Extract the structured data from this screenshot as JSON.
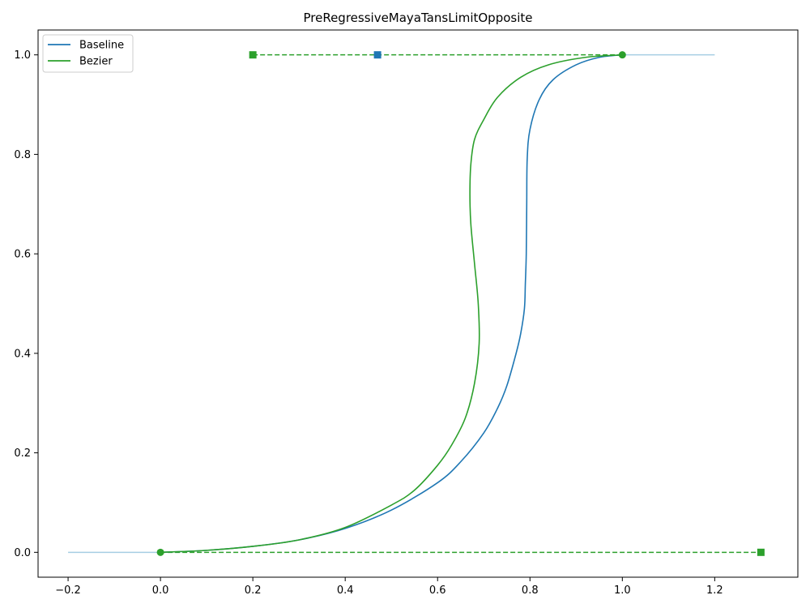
{
  "chart_data": {
    "type": "line",
    "title": "PreRegressiveMayaTansLimitOpposite",
    "xlabel": "",
    "ylabel": "",
    "xlim": [
      -0.265,
      1.38
    ],
    "ylim": [
      -0.05,
      1.05
    ],
    "xticks": [
      -0.2,
      0.0,
      0.2,
      0.4,
      0.6,
      0.8,
      1.0,
      1.2
    ],
    "xtick_labels": [
      "−0.2",
      "0.0",
      "0.2",
      "0.4",
      "0.6",
      "0.8",
      "1.0",
      "1.2"
    ],
    "yticks": [
      0.0,
      0.2,
      0.4,
      0.6,
      0.8,
      1.0
    ],
    "ytick_labels": [
      "0.0",
      "0.2",
      "0.4",
      "0.6",
      "0.8",
      "1.0"
    ],
    "grid": false,
    "legend_position": "upper-left",
    "colors": {
      "baseline": "#1f77b4",
      "bezier": "#2ca02c",
      "extension": "#a6cee3"
    },
    "series": [
      {
        "name": "Baseline",
        "points": [
          [
            0.0,
            0.0
          ],
          [
            0.1,
            0.004
          ],
          [
            0.2,
            0.012
          ],
          [
            0.3,
            0.025
          ],
          [
            0.4,
            0.048
          ],
          [
            0.5,
            0.085
          ],
          [
            0.6,
            0.14
          ],
          [
            0.65,
            0.182
          ],
          [
            0.7,
            0.24
          ],
          [
            0.73,
            0.29
          ],
          [
            0.75,
            0.335
          ],
          [
            0.77,
            0.4
          ],
          [
            0.78,
            0.44
          ],
          [
            0.788,
            0.49
          ],
          [
            0.79,
            0.54
          ],
          [
            0.792,
            0.6
          ],
          [
            0.793,
            0.7
          ],
          [
            0.794,
            0.79
          ],
          [
            0.8,
            0.85
          ],
          [
            0.82,
            0.91
          ],
          [
            0.85,
            0.95
          ],
          [
            0.9,
            0.98
          ],
          [
            0.95,
            0.995
          ],
          [
            1.0,
            1.0
          ]
        ]
      },
      {
        "name": "Bezier",
        "points": [
          [
            0.0,
            0.0
          ],
          [
            0.1,
            0.004
          ],
          [
            0.2,
            0.012
          ],
          [
            0.3,
            0.025
          ],
          [
            0.4,
            0.05
          ],
          [
            0.5,
            0.095
          ],
          [
            0.55,
            0.125
          ],
          [
            0.6,
            0.175
          ],
          [
            0.63,
            0.215
          ],
          [
            0.66,
            0.27
          ],
          [
            0.68,
            0.34
          ],
          [
            0.69,
            0.42
          ],
          [
            0.688,
            0.5
          ],
          [
            0.68,
            0.58
          ],
          [
            0.672,
            0.66
          ],
          [
            0.67,
            0.72
          ],
          [
            0.672,
            0.78
          ],
          [
            0.68,
            0.83
          ],
          [
            0.7,
            0.87
          ],
          [
            0.73,
            0.915
          ],
          [
            0.78,
            0.955
          ],
          [
            0.84,
            0.98
          ],
          [
            0.92,
            0.995
          ],
          [
            1.0,
            1.0
          ]
        ]
      },
      {
        "points": [
          [
            -0.2,
            0.0
          ],
          [
            0.0,
            0.0
          ]
        ]
      },
      {
        "points": [
          [
            1.0,
            1.0
          ],
          [
            1.2,
            1.0
          ]
        ]
      }
    ],
    "tangent_handles": [
      {
        "from": [
          0.0,
          0.0
        ],
        "to": [
          1.3,
          0.0
        ]
      },
      {
        "from": [
          0.2,
          1.0
        ],
        "to": [
          1.0,
          1.0
        ]
      }
    ],
    "markers": {
      "keys": [
        [
          0.0,
          0.0
        ],
        [
          1.0,
          1.0
        ]
      ],
      "bezier_handles": [
        [
          0.2,
          1.0
        ],
        [
          1.3,
          0.0
        ]
      ],
      "baseline_handles": [
        [
          0.47,
          1.0
        ]
      ]
    }
  }
}
